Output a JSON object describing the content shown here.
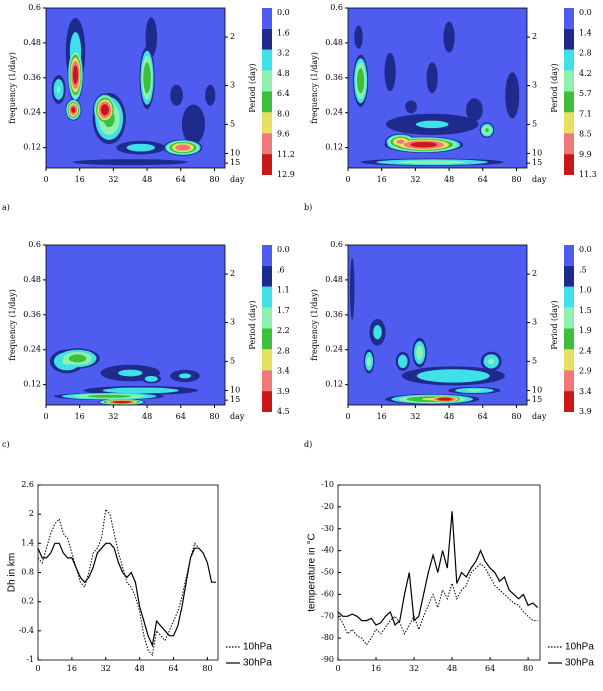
{
  "chart_data": [
    {
      "type": "contour",
      "panel_label": "a)",
      "xlabel": "day",
      "ylabel": "frequency (1/day)",
      "y2label": "Period (day)",
      "xlim": [
        0,
        85
      ],
      "ylim": [
        0.05,
        0.6
      ],
      "xticks": [
        0,
        16,
        32,
        48,
        64,
        80
      ],
      "yticks": [
        0.12,
        0.24,
        0.36,
        0.48,
        0.6
      ],
      "y2ticks": [
        2,
        3,
        5,
        10,
        15
      ],
      "y2_scale": "reciprocal",
      "levels": [
        {
          "value": 0,
          "label": "0.0"
        },
        1.6,
        3.2,
        4.8,
        6.4,
        {
          "value": 8,
          "label": "8.0"
        },
        9.6,
        11.2,
        12.9
      ],
      "colors": [
        "#4f5cf0",
        "#1e2a8c",
        "#3fe0e8",
        "#8ff0b0",
        "#3cbf3c",
        "#e8e060",
        "#f07878",
        "#c81818"
      ],
      "peaks": [
        {
          "x": 14,
          "y": 0.45,
          "value": 4,
          "sx": 6,
          "sy": 0.15
        },
        {
          "x": 14,
          "y": 0.37,
          "value": 12.5,
          "sx": 4,
          "sy": 0.1
        },
        {
          "x": 13,
          "y": 0.25,
          "value": 12,
          "sx": 4,
          "sy": 0.04
        },
        {
          "x": 6,
          "y": 0.32,
          "value": 5,
          "sx": 4,
          "sy": 0.06
        },
        {
          "x": 30,
          "y": 0.22,
          "value": 7,
          "sx": 9,
          "sy": 0.1
        },
        {
          "x": 28,
          "y": 0.25,
          "value": 12.5,
          "sx": 6,
          "sy": 0.06
        },
        {
          "x": 48,
          "y": 0.36,
          "value": 8,
          "sx": 4,
          "sy": 0.12
        },
        {
          "x": 50,
          "y": 0.5,
          "value": 3,
          "sx": 4,
          "sy": 0.1
        },
        {
          "x": 70,
          "y": 0.2,
          "value": 3,
          "sx": 8,
          "sy": 0.1
        },
        {
          "x": 45,
          "y": 0.12,
          "value": 4,
          "sx": 15,
          "sy": 0.03
        },
        {
          "x": 65,
          "y": 0.12,
          "value": 11,
          "sx": 10,
          "sy": 0.03
        },
        {
          "x": 40,
          "y": 0.07,
          "value": 3,
          "sx": 40,
          "sy": 0.015
        },
        {
          "x": 62,
          "y": 0.3,
          "value": 2.5,
          "sx": 5,
          "sy": 0.06
        },
        {
          "x": 78,
          "y": 0.3,
          "value": 2.5,
          "sx": 4,
          "sy": 0.06
        }
      ]
    },
    {
      "type": "contour",
      "panel_label": "b)",
      "xlabel": "day",
      "ylabel": "frequency (1/day)",
      "y2label": "Period (day)",
      "xlim": [
        0,
        85
      ],
      "ylim": [
        0.05,
        0.6
      ],
      "xticks": [
        0,
        16,
        32,
        48,
        64,
        80
      ],
      "yticks": [
        0.12,
        0.24,
        0.36,
        0.48,
        0.6
      ],
      "y2ticks": [
        2,
        3,
        5,
        10,
        15
      ],
      "y2_scale": "reciprocal",
      "levels": [
        {
          "value": 0,
          "label": "0.0"
        },
        1.4,
        2.8,
        4.2,
        5.7,
        7.1,
        8.5,
        9.9,
        11.3
      ],
      "colors": [
        "#4f5cf0",
        "#1e2a8c",
        "#3fe0e8",
        "#8ff0b0",
        "#3cbf3c",
        "#e8e060",
        "#f07878",
        "#c81818"
      ],
      "peaks": [
        {
          "x": 5,
          "y": 0.5,
          "value": 2.5,
          "sx": 3,
          "sy": 0.06
        },
        {
          "x": 6,
          "y": 0.35,
          "value": 7,
          "sx": 4,
          "sy": 0.1
        },
        {
          "x": 40,
          "y": 0.2,
          "value": 3,
          "sx": 30,
          "sy": 0.05
        },
        {
          "x": 25,
          "y": 0.14,
          "value": 9,
          "sx": 8,
          "sy": 0.03
        },
        {
          "x": 36,
          "y": 0.13,
          "value": 11,
          "sx": 20,
          "sy": 0.03
        },
        {
          "x": 66,
          "y": 0.18,
          "value": 6,
          "sx": 4,
          "sy": 0.03
        },
        {
          "x": 40,
          "y": 0.07,
          "value": 5,
          "sx": 40,
          "sy": 0.015
        },
        {
          "x": 20,
          "y": 0.38,
          "value": 2.5,
          "sx": 4,
          "sy": 0.1
        },
        {
          "x": 40,
          "y": 0.36,
          "value": 2.5,
          "sx": 4,
          "sy": 0.08
        },
        {
          "x": 48,
          "y": 0.5,
          "value": 2.5,
          "sx": 4,
          "sy": 0.08
        },
        {
          "x": 78,
          "y": 0.3,
          "value": 2.5,
          "sx": 5,
          "sy": 0.12
        },
        {
          "x": 60,
          "y": 0.25,
          "value": 2.5,
          "sx": 6,
          "sy": 0.06
        },
        {
          "x": 30,
          "y": 0.26,
          "value": 2,
          "sx": 5,
          "sy": 0.04
        }
      ]
    },
    {
      "type": "contour",
      "panel_label": "c)",
      "xlabel": "day",
      "ylabel": "frequency (1/day)",
      "y2label": "Period (day)",
      "xlim": [
        0,
        85
      ],
      "ylim": [
        0.05,
        0.6
      ],
      "xticks": [
        0,
        16,
        32,
        48,
        64,
        80
      ],
      "yticks": [
        0.12,
        0.24,
        0.36,
        0.48,
        0.6
      ],
      "y2ticks": [
        2,
        3,
        5,
        10,
        15
      ],
      "y2_scale": "reciprocal",
      "levels": [
        {
          "value": 0,
          "label": "0.0"
        },
        {
          "value": 0.6,
          "label": ".6"
        },
        1.1,
        1.7,
        2.2,
        2.8,
        3.4,
        3.9,
        4.5
      ],
      "colors": [
        "#4f5cf0",
        "#1e2a8c",
        "#3fe0e8",
        "#8ff0b0",
        "#3cbf3c",
        "#e8e060",
        "#f07878",
        "#c81818"
      ],
      "peaks": [
        {
          "x": 10,
          "y": 0.2,
          "value": 1.8,
          "sx": 10,
          "sy": 0.05
        },
        {
          "x": 15,
          "y": 0.21,
          "value": 2.5,
          "sx": 12,
          "sy": 0.04
        },
        {
          "x": 40,
          "y": 0.16,
          "value": 1.2,
          "sx": 20,
          "sy": 0.04
        },
        {
          "x": 50,
          "y": 0.14,
          "value": 1.5,
          "sx": 6,
          "sy": 0.02
        },
        {
          "x": 66,
          "y": 0.15,
          "value": 1.2,
          "sx": 10,
          "sy": 0.03
        },
        {
          "x": 45,
          "y": 0.1,
          "value": 1.5,
          "sx": 35,
          "sy": 0.02
        },
        {
          "x": 30,
          "y": 0.08,
          "value": 2.5,
          "sx": 30,
          "sy": 0.015
        },
        {
          "x": 36,
          "y": 0.06,
          "value": 4.5,
          "sx": 12,
          "sy": 0.012
        }
      ]
    },
    {
      "type": "contour",
      "panel_label": "d)",
      "xlabel": "day",
      "ylabel": "frequency (1/day)",
      "y2label": "Period (day)",
      "xlim": [
        0,
        85
      ],
      "ylim": [
        0.05,
        0.6
      ],
      "xticks": [
        0,
        16,
        32,
        48,
        64,
        80
      ],
      "yticks": [
        0.12,
        0.24,
        0.36,
        0.48,
        0.6
      ],
      "y2ticks": [
        2,
        3,
        5,
        10,
        15
      ],
      "y2_scale": "reciprocal",
      "levels": [
        {
          "value": 0,
          "label": "0.0"
        },
        {
          "value": 0.5,
          "label": ".5"
        },
        {
          "value": 1,
          "label": "1.0"
        },
        1.5,
        1.9,
        2.4,
        2.9,
        3.4,
        3.9
      ],
      "colors": [
        "#4f5cf0",
        "#1e2a8c",
        "#3fe0e8",
        "#8ff0b0",
        "#3cbf3c",
        "#e8e060",
        "#f07878",
        "#c81818"
      ],
      "peaks": [
        {
          "x": 2,
          "y": 0.45,
          "value": 1,
          "sx": 1.5,
          "sy": 0.15
        },
        {
          "x": 14,
          "y": 0.3,
          "value": 1.2,
          "sx": 5,
          "sy": 0.06
        },
        {
          "x": 10,
          "y": 0.2,
          "value": 1.7,
          "sx": 3,
          "sy": 0.05
        },
        {
          "x": 26,
          "y": 0.2,
          "value": 1.5,
          "sx": 4,
          "sy": 0.04
        },
        {
          "x": 34,
          "y": 0.23,
          "value": 1.8,
          "sx": 4,
          "sy": 0.06
        },
        {
          "x": 50,
          "y": 0.15,
          "value": 1.5,
          "sx": 30,
          "sy": 0.04
        },
        {
          "x": 68,
          "y": 0.2,
          "value": 1.6,
          "sx": 6,
          "sy": 0.04
        },
        {
          "x": 40,
          "y": 0.07,
          "value": 2.5,
          "sx": 25,
          "sy": 0.02
        },
        {
          "x": 60,
          "y": 0.1,
          "value": 1.6,
          "sx": 15,
          "sy": 0.015
        },
        {
          "x": 46,
          "y": 0.07,
          "value": 3.9,
          "sx": 10,
          "sy": 0.015
        }
      ]
    },
    {
      "type": "line",
      "ylabel": "Dh in km",
      "legend": "outside-lower-right",
      "xlim": [
        0,
        85
      ],
      "ylim": [
        -1,
        2.6
      ],
      "xticks": [
        0,
        16,
        32,
        48,
        64,
        80
      ],
      "yticks": [
        -1,
        -0.4,
        0.2,
        0.8,
        1.4,
        2,
        2.6
      ],
      "x": [
        0,
        2,
        4,
        6,
        8,
        10,
        12,
        14,
        16,
        18,
        20,
        22,
        24,
        26,
        28,
        30,
        32,
        34,
        36,
        38,
        40,
        42,
        44,
        46,
        48,
        50,
        52,
        54,
        56,
        58,
        60,
        62,
        64,
        66,
        68,
        70,
        72,
        74,
        76,
        78,
        80,
        82,
        84
      ],
      "series": [
        {
          "name": "10hPa",
          "color": "#000000",
          "dash": "dotted",
          "values": [
            1.1,
            1.0,
            1.3,
            1.6,
            1.8,
            1.9,
            1.6,
            1.5,
            1.2,
            0.9,
            0.6,
            0.5,
            0.8,
            1.2,
            1.3,
            1.5,
            2.1,
            2.0,
            1.6,
            1.2,
            0.9,
            0.6,
            0.5,
            0.3,
            0.0,
            -0.5,
            -0.8,
            -0.9,
            -0.4,
            -0.5,
            -0.6,
            -0.4,
            -0.2,
            0.0,
            0.3,
            0.7,
            1.1,
            1.4,
            1.3,
            null,
            null,
            null,
            null
          ]
        },
        {
          "name": "30hPa",
          "color": "#000000",
          "dash": "solid",
          "values": [
            1.3,
            1.1,
            1.1,
            1.2,
            1.4,
            1.4,
            1.2,
            1.1,
            1.1,
            0.9,
            0.7,
            0.6,
            0.7,
            0.9,
            1.2,
            1.3,
            1.4,
            1.4,
            1.3,
            1.0,
            0.8,
            0.7,
            0.8,
            0.6,
            0.1,
            -0.2,
            -0.5,
            -0.7,
            -0.2,
            -0.3,
            -0.4,
            -0.5,
            -0.5,
            -0.3,
            0.1,
            0.6,
            1.1,
            1.3,
            1.3,
            1.2,
            1.0,
            0.6,
            0.6
          ]
        }
      ]
    },
    {
      "type": "line",
      "ylabel": "temperature in °C",
      "legend": "outside-lower-right",
      "xlim": [
        0,
        85
      ],
      "ylim": [
        -90,
        -10
      ],
      "xticks": [
        0,
        16,
        32,
        48,
        64,
        80
      ],
      "yticks": [
        -90,
        -80,
        -70,
        -60,
        -50,
        -40,
        -30,
        -20,
        -10
      ],
      "x": [
        0,
        2,
        4,
        6,
        8,
        10,
        12,
        14,
        16,
        18,
        20,
        22,
        24,
        26,
        28,
        30,
        32,
        34,
        36,
        38,
        40,
        42,
        44,
        46,
        48,
        50,
        52,
        54,
        56,
        58,
        60,
        62,
        64,
        66,
        68,
        70,
        72,
        74,
        76,
        78,
        80,
        82,
        84
      ],
      "series": [
        {
          "name": "10hPa",
          "color": "#000000",
          "dash": "dotted",
          "values": [
            -70,
            -73,
            -78,
            -76,
            -79,
            -80,
            -83,
            -80,
            -76,
            -78,
            -75,
            -72,
            -70,
            -73,
            -78,
            -74,
            -70,
            -76,
            -70,
            -65,
            -60,
            -66,
            -58,
            -62,
            -55,
            -62,
            -58,
            -56,
            -50,
            -48,
            -46,
            -48,
            -52,
            -56,
            -58,
            -60,
            -62,
            -64,
            -65,
            -68,
            -70,
            -72,
            -72
          ]
        },
        {
          "name": "30hPa",
          "color": "#000000",
          "dash": "solid",
          "values": [
            -68,
            -70,
            -70,
            -69,
            -70,
            -72,
            -72,
            -71,
            -74,
            -73,
            -70,
            -68,
            -74,
            -72,
            -60,
            -50,
            -72,
            -70,
            -60,
            -50,
            -42,
            -50,
            -40,
            -48,
            -22,
            -55,
            -50,
            -52,
            -48,
            -45,
            -40,
            -45,
            -48,
            -50,
            -54,
            -52,
            -58,
            -60,
            -62,
            -60,
            -65,
            -64,
            -66
          ]
        }
      ]
    }
  ]
}
